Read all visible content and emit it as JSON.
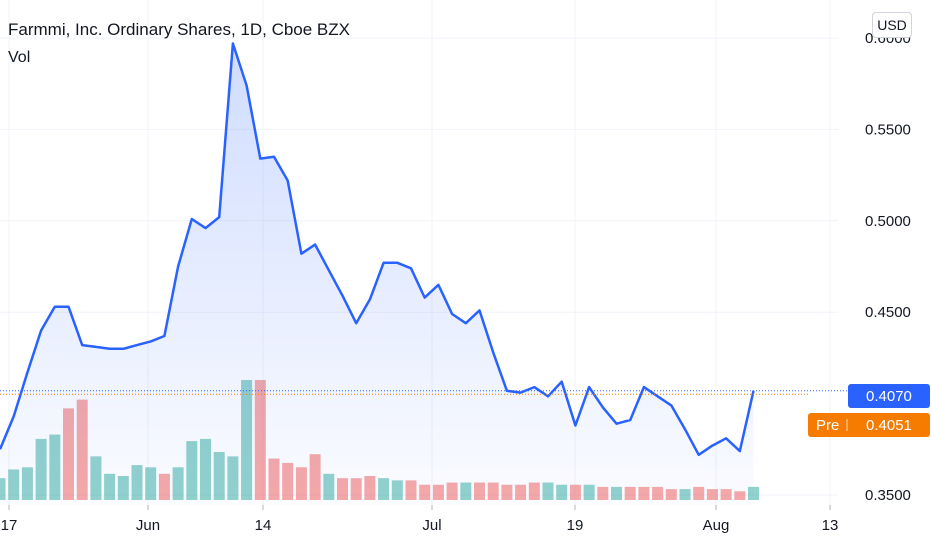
{
  "header": {
    "title": "Farmmi, Inc. Ordinary Shares, 1D, Cboe BZX",
    "volume_label": "Vol",
    "currency": "USD"
  },
  "price_tags": {
    "last": "0.4070",
    "pre_label": "Pre",
    "pre_value": "0.4051",
    "last_color": "#2962ff",
    "pre_color": "#f57c00"
  },
  "chart_data": {
    "type": "area",
    "title": "Farmmi, Inc. Ordinary Shares, 1D, Cboe BZX",
    "ylim": [
      0.35,
      0.6
    ],
    "y_ticks": [
      "0.6000",
      "0.5500",
      "0.5000",
      "0.4500",
      "0.3500"
    ],
    "x_ticks": [
      "17",
      "Jun",
      "14",
      "Jul",
      "19",
      "Aug",
      "13"
    ],
    "series": [
      {
        "values": [
          0.375,
          0.393,
          0.417,
          0.44,
          0.453,
          0.453,
          0.432,
          0.431,
          0.43,
          0.43,
          0.432,
          0.434,
          0.437,
          0.475,
          0.501,
          0.496,
          0.502,
          0.597,
          0.574,
          0.534,
          0.535,
          0.522,
          0.482,
          0.487,
          0.473,
          0.459,
          0.444,
          0.457,
          0.477,
          0.477,
          0.474,
          0.458,
          0.465,
          0.449,
          0.444,
          0.451,
          0.428,
          0.407,
          0.406,
          0.409,
          0.404,
          0.412,
          0.388,
          0.409,
          0.398,
          0.389,
          0.391,
          0.409,
          0.404,
          0.399,
          0.386,
          0.372,
          0.377,
          0.381,
          0.374,
          0.407
        ]
      }
    ],
    "volume": {
      "values": [
        10,
        14,
        15,
        28,
        30,
        42,
        46,
        20,
        12,
        11,
        16,
        15,
        12,
        15,
        27,
        28,
        22,
        20,
        55,
        55,
        19,
        17,
        15,
        21,
        12,
        10,
        10,
        11,
        10,
        9,
        9,
        7,
        7,
        8,
        8,
        8,
        8,
        7,
        7,
        8,
        8,
        7,
        7,
        7,
        6,
        6,
        6,
        6,
        6,
        5,
        5,
        6,
        5,
        5,
        4,
        6
      ],
      "colors": [
        "#26a69a",
        "#26a69a",
        "#26a69a",
        "#26a69a",
        "#26a69a",
        "#ef5350",
        "#ef5350",
        "#26a69a",
        "#26a69a",
        "#26a69a",
        "#26a69a",
        "#26a69a",
        "#ef5350",
        "#26a69a",
        "#26a69a",
        "#26a69a",
        "#26a69a",
        "#26a69a",
        "#26a69a",
        "#ef5350",
        "#ef5350",
        "#ef5350",
        "#ef5350",
        "#ef5350",
        "#26a69a",
        "#ef5350",
        "#ef5350",
        "#ef5350",
        "#26a69a",
        "#26a69a",
        "#ef5350",
        "#ef5350",
        "#ef5350",
        "#ef5350",
        "#26a69a",
        "#ef5350",
        "#ef5350",
        "#ef5350",
        "#ef5350",
        "#ef5350",
        "#26a69a",
        "#26a69a",
        "#ef5350",
        "#26a69a",
        "#ef5350",
        "#26a69a",
        "#ef5350",
        "#ef5350",
        "#ef5350",
        "#ef5350",
        "#26a69a",
        "#ef5350",
        "#ef5350",
        "#ef5350",
        "#ef5350",
        "#26a69a"
      ]
    },
    "line_color": "#2962ff",
    "grid": true
  }
}
